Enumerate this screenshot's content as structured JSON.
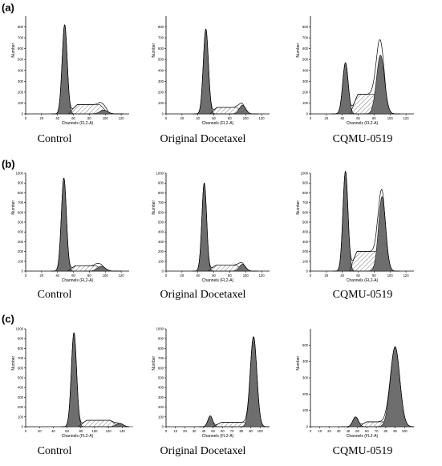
{
  "rows": [
    {
      "label": "(a)",
      "captions": [
        "Control",
        "Original Docetaxel",
        "CQMU-0519"
      ]
    },
    {
      "label": "(b)",
      "captions": [
        "Control",
        "Original Docetaxel",
        "CQMU-0519"
      ]
    },
    {
      "label": "(c)",
      "captions": [
        "Control",
        "Original Docetaxel",
        "CQMU-0519"
      ]
    }
  ],
  "axes": {
    "xlabel": "Channels (FL2-A)",
    "ylabel": "Number"
  },
  "chart_data": [
    {
      "type": "area",
      "title": "Control",
      "row": "(a)",
      "xlabel": "Channels (FL2-A)",
      "ylabel": "Number",
      "xlim": [
        0,
        130
      ],
      "ylim": [
        0,
        900
      ],
      "xticks": [
        0,
        20,
        40,
        60,
        80,
        100,
        120
      ],
      "yticks": [
        0,
        100,
        200,
        300,
        400,
        500,
        600,
        700,
        800
      ],
      "series": [
        {
          "name": "G1",
          "peak": {
            "x": 49,
            "y": 820,
            "sd": 3.2
          }
        },
        {
          "name": "S",
          "range": [
            54,
            104
          ],
          "level": 85
        },
        {
          "name": "G2/M",
          "peak": {
            "x": 98,
            "y": 35,
            "sd": 5
          }
        }
      ]
    },
    {
      "type": "area",
      "title": "Original Docetaxel",
      "row": "(a)",
      "xlabel": "Channels (FL2-A)",
      "ylabel": "Number",
      "xlim": [
        0,
        130
      ],
      "ylim": [
        0,
        900
      ],
      "xticks": [
        0,
        20,
        40,
        60,
        80,
        100,
        120
      ],
      "yticks": [
        0,
        100,
        200,
        300,
        400,
        500,
        600,
        700,
        800
      ],
      "series": [
        {
          "name": "G1",
          "peak": {
            "x": 50,
            "y": 780,
            "sd": 3.2
          }
        },
        {
          "name": "S",
          "range": [
            55,
            98
          ],
          "level": 60
        },
        {
          "name": "G2/M",
          "peak": {
            "x": 96,
            "y": 80,
            "sd": 4
          }
        }
      ]
    },
    {
      "type": "area",
      "title": "CQMU-0519",
      "row": "(a)",
      "xlabel": "Channels (FL2-A)",
      "ylabel": "Number",
      "xlim": [
        0,
        130
      ],
      "ylim": [
        0,
        900
      ],
      "xticks": [
        0,
        20,
        40,
        60,
        80,
        100,
        120
      ],
      "yticks": [
        0,
        100,
        200,
        300,
        400,
        500,
        600,
        700,
        800
      ],
      "series": [
        {
          "name": "G1",
          "peak": {
            "x": 44,
            "y": 470,
            "sd": 3.5
          }
        },
        {
          "name": "S",
          "range": [
            50,
            95
          ],
          "level": 180
        },
        {
          "name": "G2/M",
          "peak": {
            "x": 88,
            "y": 540,
            "sd": 5
          }
        }
      ]
    },
    {
      "type": "area",
      "title": "Control",
      "row": "(b)",
      "xlabel": "Channels (FL2-A)",
      "ylabel": "Number",
      "xlim": [
        0,
        130
      ],
      "ylim": [
        0,
        1000
      ],
      "xticks": [
        0,
        20,
        40,
        60,
        80,
        100,
        120
      ],
      "yticks": [
        0,
        100,
        200,
        300,
        400,
        500,
        600,
        700,
        800,
        900,
        1000
      ],
      "series": [
        {
          "name": "G1",
          "peak": {
            "x": 48,
            "y": 950,
            "sd": 3.2
          }
        },
        {
          "name": "S",
          "range": [
            53,
            98
          ],
          "level": 55
        },
        {
          "name": "G2/M",
          "peak": {
            "x": 95,
            "y": 50,
            "sd": 5
          }
        }
      ]
    },
    {
      "type": "area",
      "title": "Original Docetaxel",
      "row": "(b)",
      "xlabel": "Channels (FL2-A)",
      "ylabel": "Number",
      "xlim": [
        0,
        130
      ],
      "ylim": [
        0,
        1000
      ],
      "xticks": [
        0,
        20,
        40,
        60,
        80,
        100,
        120
      ],
      "yticks": [
        0,
        100,
        200,
        300,
        400,
        500,
        600,
        700,
        800,
        900,
        1000
      ],
      "series": [
        {
          "name": "G1",
          "peak": {
            "x": 48,
            "y": 900,
            "sd": 3.0
          }
        },
        {
          "name": "S",
          "range": [
            53,
            98
          ],
          "level": 60
        },
        {
          "name": "G2/M",
          "peak": {
            "x": 96,
            "y": 70,
            "sd": 4
          }
        }
      ]
    },
    {
      "type": "area",
      "title": "CQMU-0519",
      "row": "(b)",
      "xlabel": "Channels (FL2-A)",
      "ylabel": "Number",
      "xlim": [
        0,
        130
      ],
      "ylim": [
        0,
        1000
      ],
      "xticks": [
        0,
        20,
        40,
        60,
        80,
        100,
        120
      ],
      "yticks": [
        0,
        100,
        200,
        300,
        400,
        500,
        600,
        700,
        800,
        900,
        1000
      ],
      "series": [
        {
          "name": "G1",
          "peak": {
            "x": 44,
            "y": 1020,
            "sd": 3.2
          }
        },
        {
          "name": "S",
          "range": [
            49,
            93
          ],
          "level": 200
        },
        {
          "name": "G2/M",
          "peak": {
            "x": 90,
            "y": 760,
            "sd": 4.5
          }
        }
      ]
    },
    {
      "type": "area",
      "title": "Control",
      "row": "(c)",
      "xlabel": "Channels (FL2-A)",
      "ylabel": "Number",
      "xlim": [
        0,
        150
      ],
      "ylim": [
        0,
        1000
      ],
      "xticks": [
        0,
        20,
        40,
        60,
        80,
        100,
        120,
        140
      ],
      "yticks": [
        0,
        100,
        200,
        300,
        400,
        500,
        600,
        700,
        800,
        900,
        1000
      ],
      "series": [
        {
          "name": "G1",
          "peak": {
            "x": 70,
            "y": 960,
            "sd": 3.8
          }
        },
        {
          "name": "S",
          "range": [
            76,
            135
          ],
          "level": 65
        },
        {
          "name": "G2/M",
          "peak": {
            "x": 136,
            "y": 35,
            "sd": 5
          }
        }
      ]
    },
    {
      "type": "area",
      "title": "Original Docetaxel",
      "row": "(c)",
      "xlabel": "Channels (FL2-A)",
      "ylabel": "Number",
      "xlim": [
        0,
        110
      ],
      "ylim": [
        0,
        1000
      ],
      "xticks": [
        0,
        10,
        20,
        30,
        40,
        50,
        60,
        70,
        80,
        90,
        100
      ],
      "yticks": [
        0,
        100,
        200,
        300,
        400,
        500,
        600,
        700,
        800,
        900,
        1000
      ],
      "series": [
        {
          "name": "G1",
          "peak": {
            "x": 47,
            "y": 110,
            "sd": 2.5
          }
        },
        {
          "name": "S",
          "range": [
            50,
            92
          ],
          "level": 45
        },
        {
          "name": "G2/M",
          "peak": {
            "x": 93,
            "y": 920,
            "sd": 3.5
          }
        }
      ]
    },
    {
      "type": "area",
      "title": "CQMU-0519",
      "row": "(c)",
      "xlabel": "Channels (FL2-A)",
      "ylabel": "Number",
      "xlim": [
        0,
        110
      ],
      "ylim": [
        0,
        600
      ],
      "xticks": [
        0,
        10,
        20,
        30,
        40,
        50,
        60,
        70,
        80,
        90,
        100
      ],
      "yticks": [
        0,
        100,
        200,
        300,
        400,
        500
      ],
      "series": [
        {
          "name": "G1",
          "peak": {
            "x": 48,
            "y": 60,
            "sd": 3
          }
        },
        {
          "name": "S",
          "range": [
            52,
            88
          ],
          "level": 30
        },
        {
          "name": "G2/M",
          "peak": {
            "x": 90,
            "y": 490,
            "sd": 5
          }
        }
      ]
    }
  ]
}
